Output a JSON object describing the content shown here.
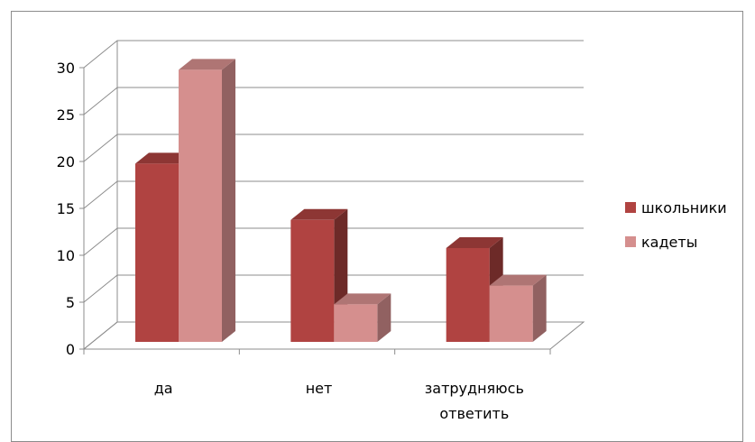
{
  "chart_data": {
    "type": "bar",
    "style": "3d-clustered-column",
    "categories": [
      "да",
      "нет",
      "затрудняюсь ответить"
    ],
    "category_lines": [
      [
        "да"
      ],
      [
        "нет"
      ],
      [
        "затрудняюсь",
        "ответить"
      ]
    ],
    "series": [
      {
        "name": "школьники",
        "values": [
          19,
          13,
          10
        ],
        "color": "#b04341"
      },
      {
        "name": "кадеты",
        "values": [
          29,
          4,
          6
        ],
        "color": "#d58f8e"
      }
    ],
    "ylim": [
      0,
      30
    ],
    "yticks": [
      "0",
      "5",
      "10",
      "15",
      "20",
      "25",
      "30"
    ],
    "grid": true,
    "legend": "right",
    "title": "",
    "xlabel": "",
    "ylabel": ""
  }
}
